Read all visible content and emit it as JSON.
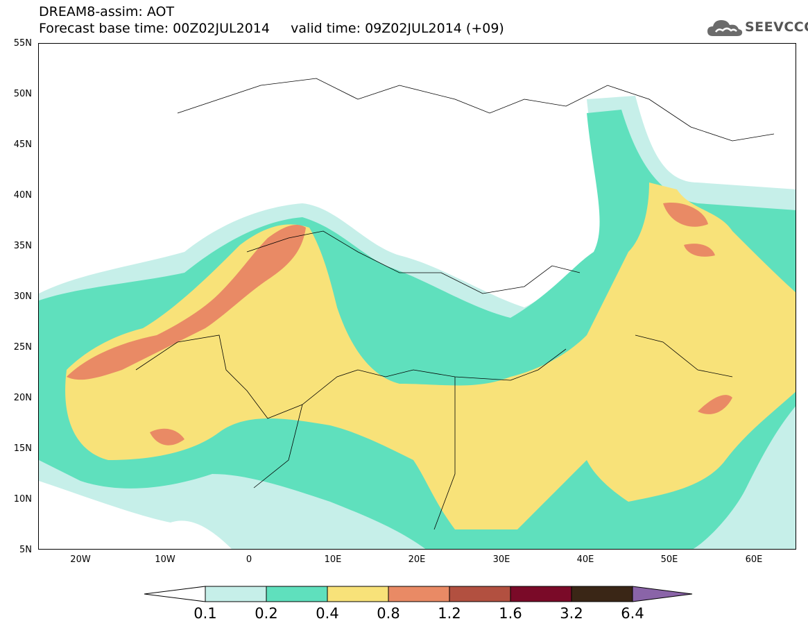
{
  "header": {
    "line1": "DREAM8-assim: AOT",
    "line2": "Forecast base time: 00Z02JUL2014     valid time: 09Z02JUL2014 (+09)"
  },
  "logo": {
    "text": "SEEVCCC",
    "icon": "cloud-icon"
  },
  "map": {
    "lat_range": [
      5,
      55
    ],
    "lon_range": [
      -25,
      65
    ],
    "lat_labels": [
      "55N",
      "50N",
      "45N",
      "40N",
      "35N",
      "30N",
      "25N",
      "20N",
      "15N",
      "10N",
      "5N"
    ],
    "lon_labels": [
      "20W",
      "10W",
      "0",
      "10E",
      "20E",
      "30E",
      "40E",
      "50E",
      "60E"
    ]
  },
  "colorbar": {
    "labels": [
      "0.1",
      "0.2",
      "0.4",
      "0.8",
      "1.2",
      "1.6",
      "3.2",
      "6.4"
    ],
    "colors": [
      "#ffffff",
      "#c6efe9",
      "#5fe0bd",
      "#f8e279",
      "#e98a65",
      "#b25040",
      "#7a0a28",
      "#3a2616",
      "#8a64a8"
    ]
  }
}
